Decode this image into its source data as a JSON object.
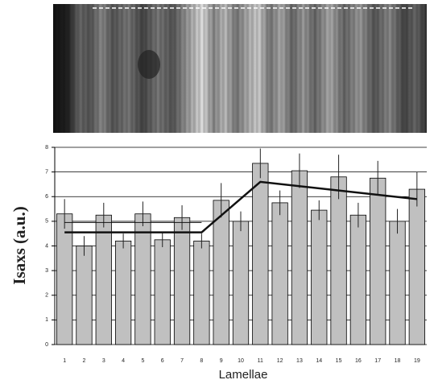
{
  "chart_data": {
    "type": "bar",
    "x_label": "Lamellae",
    "y_label": "Isaxs (a.u.)",
    "categories": [
      "1",
      "2",
      "3",
      "4",
      "5",
      "6",
      "7",
      "8",
      "9",
      "10",
      "11",
      "12",
      "13",
      "14",
      "15",
      "16",
      "17",
      "18",
      "19"
    ],
    "values": [
      5.3,
      4.0,
      5.25,
      4.2,
      5.3,
      4.25,
      5.15,
      4.2,
      5.85,
      5.0,
      7.35,
      5.75,
      7.05,
      5.45,
      6.8,
      5.25,
      6.75,
      5.0,
      6.3
    ],
    "errors": [
      0.6,
      0.4,
      0.5,
      0.3,
      0.5,
      0.3,
      0.5,
      0.3,
      0.7,
      0.4,
      0.6,
      0.5,
      0.7,
      0.4,
      0.9,
      0.5,
      0.7,
      0.5,
      0.7
    ],
    "color": "#c0c0c0",
    "lines": [
      {
        "x": [
          1,
          8,
          11,
          19
        ],
        "values": [
          4.55,
          4.55,
          6.6,
          5.9
        ],
        "color": "#111111",
        "width": 2.5
      },
      {
        "x": [
          1,
          8
        ],
        "values": [
          4.95,
          4.95
        ],
        "color": "#111111",
        "width": 1
      }
    ],
    "ylim": [
      0,
      8
    ],
    "yticks": [
      0,
      1,
      2,
      3,
      4,
      5,
      6,
      7,
      8
    ],
    "grid": true
  }
}
